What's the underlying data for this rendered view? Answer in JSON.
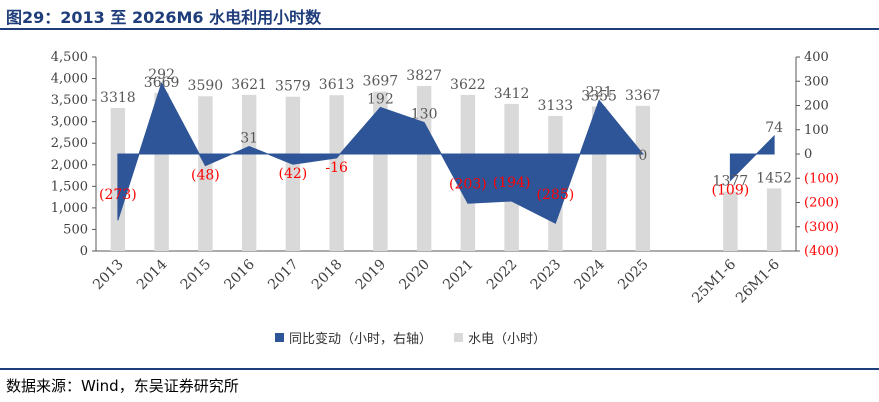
{
  "title": "图29：2013 至 2026M6 水电利用小时数",
  "source": "数据来源：Wind，东吴证券研究所",
  "colors": {
    "bar": "#d9d9d9",
    "area": "#2e5597",
    "negative_label": "#ff0000",
    "label": "#595959",
    "axis": "#595959"
  },
  "chart_data": {
    "type": "bar",
    "categories": [
      "2013",
      "2014",
      "2015",
      "2016",
      "2017",
      "2018",
      "2019",
      "2020",
      "2021",
      "2022",
      "2023",
      "2024",
      "2025",
      "",
      "25M1-6",
      "26M1-6"
    ],
    "series": [
      {
        "name": "水电（小时）",
        "type": "bar",
        "axis": "left",
        "values": [
          3318,
          3669,
          3590,
          3621,
          3579,
          3613,
          3697,
          3827,
          3622,
          3412,
          3133,
          3355,
          3367,
          null,
          1377,
          1452
        ],
        "value_labels": [
          "3318",
          "3669",
          "3590",
          "3621",
          "3579",
          "3613",
          "3697",
          "3827",
          "3622",
          "3412",
          "3133",
          "3355",
          "3367",
          "",
          "1377",
          "1452"
        ]
      },
      {
        "name": "同比变动（小时，右轴）",
        "type": "area",
        "axis": "right",
        "values": [
          -273,
          292,
          -48,
          31,
          -42,
          -16,
          192,
          130,
          -203,
          -194,
          -285,
          221,
          0,
          null,
          -109,
          74
        ],
        "value_labels": [
          "(273)",
          "292",
          "(48)",
          "31",
          "(42)",
          "-16",
          "192",
          "130",
          "(203)",
          "(194)",
          "(285)",
          "221",
          "0",
          "",
          "(109)",
          "74"
        ]
      }
    ],
    "y_left": {
      "min": 0,
      "max": 4500,
      "ticks": [
        0,
        500,
        1000,
        1500,
        2000,
        2500,
        3000,
        3500,
        4000,
        4500
      ],
      "tick_labels": [
        "0",
        "500",
        "1,000",
        "1,500",
        "2,000",
        "2,500",
        "3,000",
        "3,500",
        "4,000",
        "4,500"
      ]
    },
    "y_right": {
      "min": -400,
      "max": 400,
      "ticks": [
        -400,
        -300,
        -200,
        -100,
        0,
        100,
        200,
        300,
        400
      ],
      "tick_labels": [
        "(400)",
        "(300)",
        "(200)",
        "(100)",
        "0",
        "100",
        "200",
        "300",
        "400"
      ]
    },
    "legend": {
      "position": "bottom",
      "items": [
        "同比变动（小时，右轴）",
        "水电（小时）"
      ]
    },
    "grid": false
  }
}
